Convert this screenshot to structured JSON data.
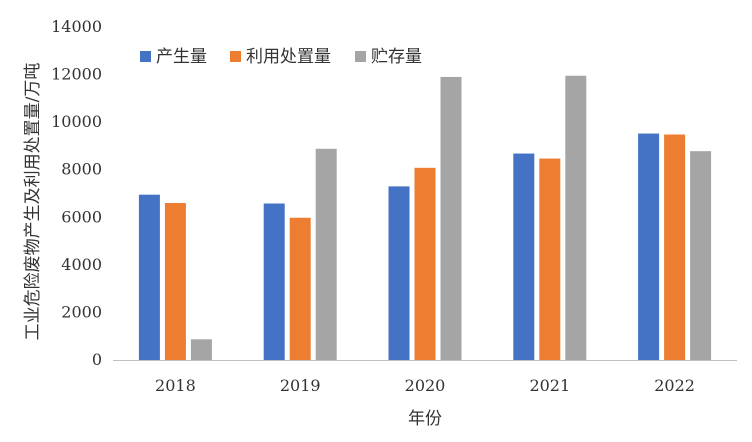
{
  "chart_data": {
    "type": "bar",
    "title": "",
    "xlabel": "年份",
    "ylabel": "工业危险废物产生及利用处置量/万吨",
    "categories": [
      "2018",
      "2019",
      "2020",
      "2021",
      "2022"
    ],
    "ylim": [
      0,
      14000
    ],
    "yticks": [
      0,
      2000,
      4000,
      6000,
      8000,
      10000,
      12000,
      14000
    ],
    "grid": false,
    "legend_position": "top-left",
    "series": [
      {
        "name": "产生量",
        "color": "#4472c4",
        "values": [
          6950,
          6580,
          7300,
          8680,
          9520
        ]
      },
      {
        "name": "利用处置量",
        "color": "#ed7d31",
        "values": [
          6600,
          5980,
          8080,
          8470,
          9480
        ]
      },
      {
        "name": "贮存量",
        "color": "#a5a5a5",
        "values": [
          870,
          8880,
          11900,
          11950,
          8780
        ]
      }
    ]
  }
}
